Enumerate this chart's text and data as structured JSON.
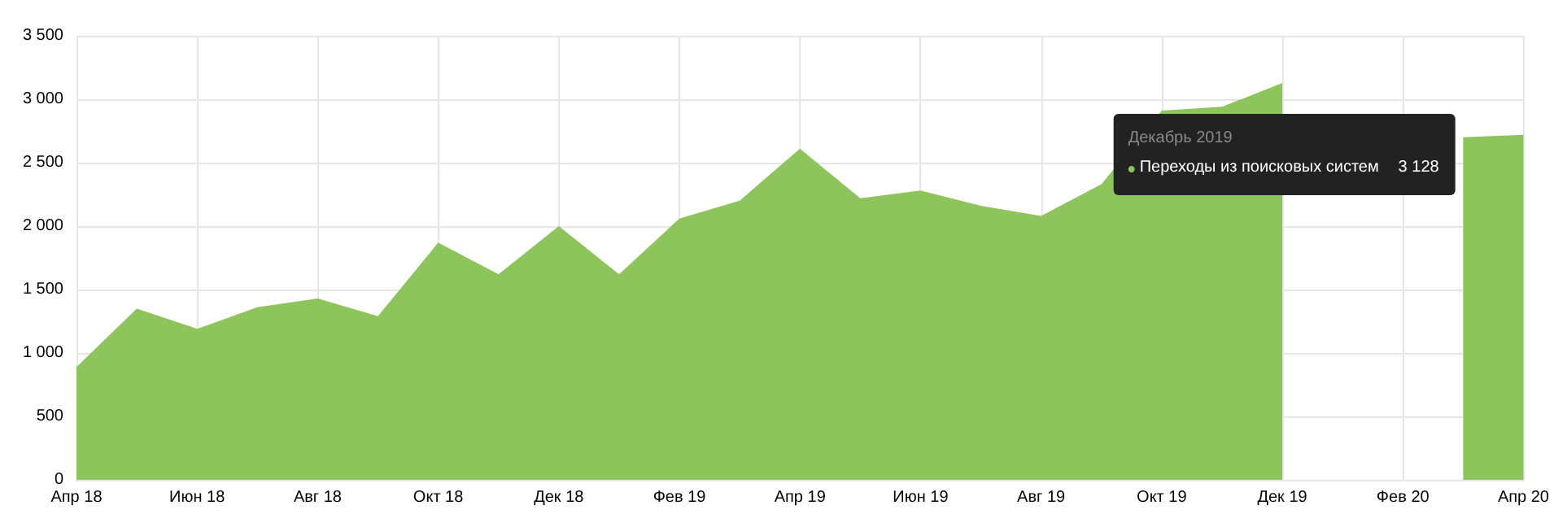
{
  "chart_data": {
    "type": "area",
    "categories": [
      "Апр 18",
      null,
      "Июн 18",
      null,
      "Авг 18",
      null,
      "Окт 18",
      null,
      "Дек 18",
      null,
      "Фев 19",
      null,
      "Апр 19",
      null,
      "Июн 19",
      null,
      "Авг 19",
      null,
      "Окт 19",
      null,
      "Дек 19",
      null,
      "Фев 20",
      null,
      "Апр 20"
    ],
    "series": [
      {
        "name": "Переходы из поисковых систем",
        "color": "#8dc55c",
        "values": [
          890,
          1350,
          1190,
          1360,
          1430,
          1290,
          1870,
          1620,
          2000,
          1620,
          2060,
          2200,
          2610,
          2220,
          2280,
          2160,
          2080,
          2330,
          2910,
          2940,
          3128,
          null,
          null,
          2700,
          2720
        ]
      }
    ],
    "ylim": [
      0,
      3500
    ],
    "yticks": [
      0,
      500,
      {
        "value": 1000,
        "label": "1 000"
      },
      {
        "value": 1500,
        "label": "1 500"
      },
      {
        "value": 2000,
        "label": "2 000"
      },
      {
        "value": 2500,
        "label": "2 500"
      },
      {
        "value": 3000,
        "label": "3 000"
      },
      {
        "value": 3500,
        "label": "3 500"
      }
    ],
    "grid": true,
    "annotations": [
      "Декабрь 2019",
      "3 128"
    ]
  }
}
